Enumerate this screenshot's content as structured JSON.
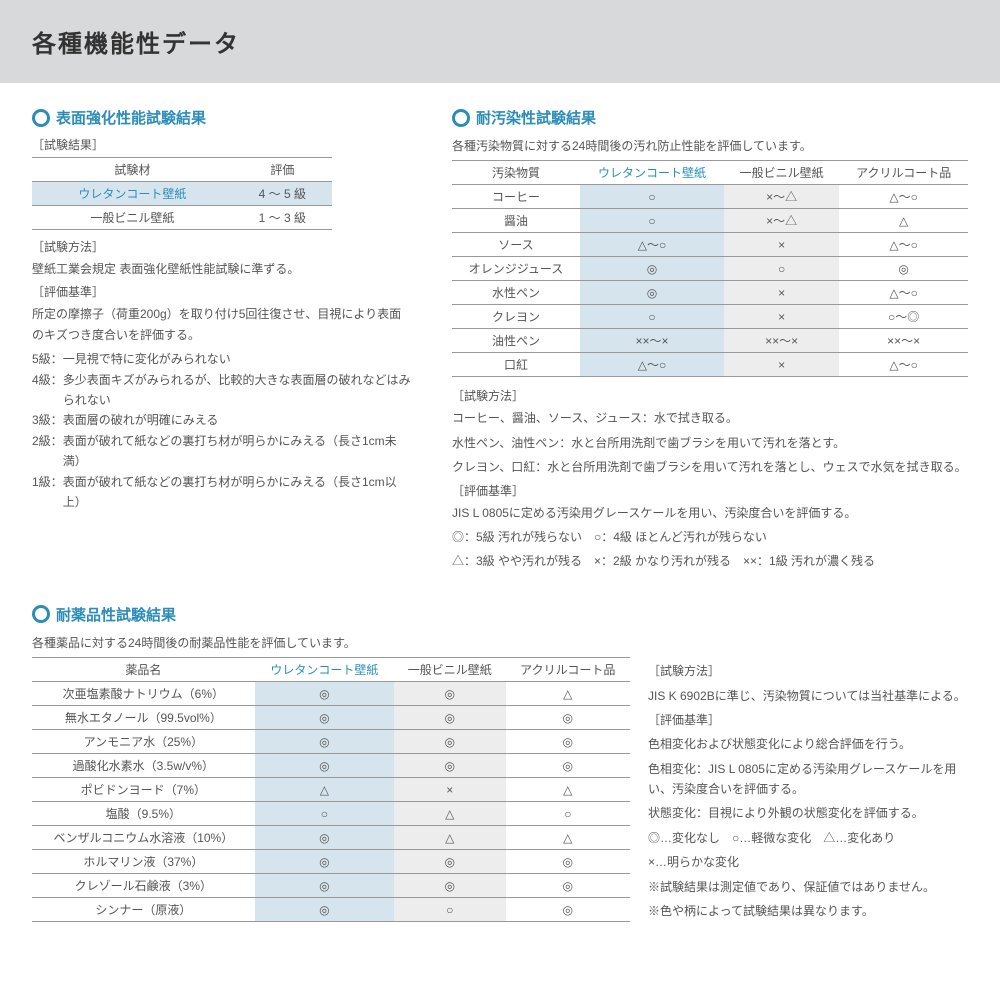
{
  "header": {
    "title": "各種機能性データ"
  },
  "colors": {
    "accent": "#2b8db8",
    "header_bg": "#d8d9da",
    "hl_blue_bg": "#d6e4ee",
    "hl_grey_bg": "#ededed",
    "border": "#999999",
    "text": "#4b4b4b"
  },
  "sec1": {
    "title": "表面強化性能試験結果",
    "sub": "［試験結果］",
    "th1": "試験材",
    "th2": "評価",
    "r1c1": "ウレタンコート壁紙",
    "r1c2": "4 ～ 5 級",
    "r2c1": "一般ビニル壁紙",
    "r2c2": "1 ～ 3 級",
    "method_label": "［試験方法］",
    "method": "壁紙工業会規定 表面強化壁紙性能試験に準ずる。",
    "criteria_label": "［評価基準］",
    "criteria": "所定の摩擦子（荷重200g）を取り付け5回往復させ、目視により表面のキズつき度合いを評価する。",
    "g5k": "5級：",
    "g5v": "一見視で特に変化がみられない",
    "g4k": "4級：",
    "g4v": "多少表面キズがみられるが、比較的大きな表面層の破れなどはみられない",
    "g3k": "3級：",
    "g3v": "表面層の破れが明確にみえる",
    "g2k": "2級：",
    "g2v": "表面が破れて紙などの裏打ち材が明らかにみえる（長さ1cm未満）",
    "g1k": "1級：",
    "g1v": "表面が破れて紙などの裏打ち材が明らかにみえる（長さ1cm以上）"
  },
  "sec2": {
    "title": "耐汚染性試験結果",
    "desc": "各種汚染物質に対する24時間後の汚れ防止性能を評価しています。",
    "th0": "汚染物質",
    "th1": "ウレタンコート壁紙",
    "th2": "一般ビニル壁紙",
    "th3": "アクリルコート品",
    "rows": [
      [
        "コーヒー",
        "○",
        "×～△",
        "△～○"
      ],
      [
        "醤油",
        "○",
        "×～△",
        "△"
      ],
      [
        "ソース",
        "△～○",
        "×",
        "△～○"
      ],
      [
        "オレンジジュース",
        "◎",
        "○",
        "◎"
      ],
      [
        "水性ペン",
        "◎",
        "×",
        "△～○"
      ],
      [
        "クレヨン",
        "○",
        "×",
        "○～◎"
      ],
      [
        "油性ペン",
        "××～×",
        "××～×",
        "××～×"
      ],
      [
        "口紅",
        "△～○",
        "×",
        "△～○"
      ]
    ],
    "method_label": "［試験方法］",
    "m1": "コーヒー、醤油、ソース、ジュース：水で拭き取る。",
    "m2": "水性ペン、油性ペン：水と台所用洗剤で歯ブラシを用いて汚れを落とす。",
    "m3": "クレヨン、口紅：水と台所用洗剤で歯ブラシを用いて汚れを落とし、ウェスで水気を拭き取る。",
    "criteria_label": "［評価基準］",
    "c1": "JIS L 0805に定める汚染用グレースケールを用い、汚染度合いを評価する。",
    "c2": "◎：5級 汚れが残らない　○：4級 ほとんど汚れが残らない",
    "c3": "△：3級 やや汚れが残る　×：2級 かなり汚れが残る　××：1級 汚れが濃く残る"
  },
  "sec3": {
    "title": "耐薬品性試験結果",
    "desc": "各種薬品に対する24時間後の耐薬品性能を評価しています。",
    "th0": "薬品名",
    "th1": "ウレタンコート壁紙",
    "th2": "一般ビニル壁紙",
    "th3": "アクリルコート品",
    "rows": [
      [
        "次亜塩素酸ナトリウム（6%）",
        "◎",
        "◎",
        "△"
      ],
      [
        "無水エタノール（99.5vol%）",
        "◎",
        "◎",
        "◎"
      ],
      [
        "アンモニア水（25%）",
        "◎",
        "◎",
        "◎"
      ],
      [
        "過酸化水素水（3.5w/v%）",
        "◎",
        "◎",
        "◎"
      ],
      [
        "ポビドンヨード（7%）",
        "△",
        "×",
        "△"
      ],
      [
        "塩酸（9.5%）",
        "○",
        "△",
        "○"
      ],
      [
        "ベンザルコニウム水溶液（10%）",
        "◎",
        "△",
        "△"
      ],
      [
        "ホルマリン液（37%）",
        "◎",
        "◎",
        "◎"
      ],
      [
        "クレゾール石鹸液（3%）",
        "◎",
        "◎",
        "◎"
      ],
      [
        "シンナー（原液）",
        "◎",
        "○",
        "◎"
      ]
    ],
    "method_label": "［試験方法］",
    "m1": "JIS K 6902Bに準じ、汚染物質については当社基準による。",
    "criteria_label": "［評価基準］",
    "c1": "色相変化および状態変化により総合評価を行う。",
    "c2k": "色相変化：",
    "c2v": "JIS L 0805に定める汚染用グレースケールを用い、汚染度合いを評価する。",
    "c3k": "状態変化：",
    "c3v": "目視により外観の状態変化を評価する。",
    "c4": "◎…変化なし　○…軽微な変化　△…変化あり",
    "c5": "×…明らかな変化",
    "n1": "※試験結果は測定値であり、保証値ではありません。",
    "n2": "※色や柄によって試験結果は異なります。"
  }
}
